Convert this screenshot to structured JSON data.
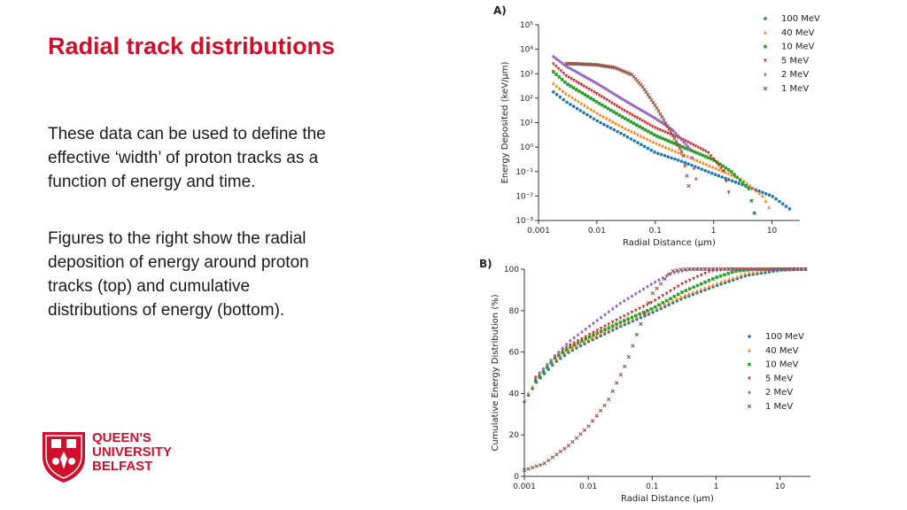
{
  "slide": {
    "title": "Radial track distributions",
    "paragraphs": [
      "These data can be used to define the effective ‘width’ of proton tracks as a function of energy and time.",
      "Figures to the right show the radial deposition of energy around proton tracks (top) and cumulative distributions of energy (bottom)."
    ]
  },
  "logo": {
    "lines": [
      "QUEEN'S",
      "UNIVERSITY",
      "BELFAST"
    ],
    "icon": "university-crest-icon",
    "color": "#d10e2c"
  },
  "chart_data": [
    {
      "panel": "A)",
      "type": "scatter",
      "xscale": "log",
      "yscale": "log",
      "xlabel": "Radial Distance (μm)",
      "ylabel": "Energy Deposited (keV/μm)",
      "xlim": [
        0.001,
        30
      ],
      "ylim": [
        0.001,
        100000
      ],
      "x_ticks": [
        "0.001",
        "0.01",
        "0.1",
        "1",
        "10"
      ],
      "y_ticks": [
        "10⁻³",
        "10⁻²",
        "10⁻¹",
        "10⁰",
        "10¹",
        "10²",
        "10³",
        "10⁴",
        "10⁵"
      ],
      "legend_position": "top-right",
      "series": [
        {
          "name": "100 MeV",
          "color": "#1f77b4",
          "marker": "dot",
          "points": [
            [
              0.0018,
              180
            ],
            [
              0.003,
              70
            ],
            [
              0.01,
              12
            ],
            [
              0.03,
              3
            ],
            [
              0.1,
              0.6
            ],
            [
              0.3,
              0.25
            ],
            [
              1,
              0.08
            ],
            [
              3,
              0.03
            ],
            [
              10,
              0.01
            ],
            [
              20,
              0.003
            ]
          ]
        },
        {
          "name": "40 MeV",
          "color": "#ff7f0e",
          "marker": "triangle",
          "points": [
            [
              0.0018,
              400
            ],
            [
              0.003,
              150
            ],
            [
              0.01,
              25
            ],
            [
              0.03,
              6
            ],
            [
              0.1,
              1.5
            ],
            [
              0.3,
              0.5
            ],
            [
              1,
              0.15
            ],
            [
              3,
              0.05
            ],
            [
              7,
              0.01
            ],
            [
              10,
              0.002
            ]
          ]
        },
        {
          "name": "10 MeV",
          "color": "#2ca02c",
          "marker": "square",
          "points": [
            [
              0.0018,
              1200
            ],
            [
              0.003,
              400
            ],
            [
              0.01,
              70
            ],
            [
              0.03,
              15
            ],
            [
              0.1,
              3
            ],
            [
              0.3,
              1
            ],
            [
              1,
              0.3
            ],
            [
              2,
              0.1
            ],
            [
              4,
              0.02
            ],
            [
              5,
              0.002
            ]
          ]
        },
        {
          "name": "5 MeV",
          "color": "#d62728",
          "marker": "triangle-down",
          "points": [
            [
              0.0018,
              2500
            ],
            [
              0.003,
              800
            ],
            [
              0.01,
              150
            ],
            [
              0.03,
              30
            ],
            [
              0.1,
              6
            ],
            [
              0.3,
              2
            ],
            [
              0.8,
              0.6
            ],
            [
              1.5,
              0.1
            ],
            [
              2,
              0.005
            ]
          ]
        },
        {
          "name": "2 MeV",
          "color": "#9467bd",
          "marker": "diamond",
          "points": [
            [
              0.0018,
              5000
            ],
            [
              0.003,
              2000
            ],
            [
              0.01,
              400
            ],
            [
              0.03,
              80
            ],
            [
              0.1,
              15
            ],
            [
              0.2,
              5
            ],
            [
              0.4,
              0.8
            ],
            [
              0.5,
              0.05
            ]
          ]
        },
        {
          "name": "1 MeV",
          "color": "#8c564b",
          "marker": "cross",
          "points": [
            [
              0.003,
              2600
            ],
            [
              0.005,
              2500
            ],
            [
              0.01,
              2300
            ],
            [
              0.02,
              1800
            ],
            [
              0.04,
              900
            ],
            [
              0.06,
              300
            ],
            [
              0.1,
              50
            ],
            [
              0.2,
              3
            ],
            [
              0.3,
              0.5
            ],
            [
              0.4,
              0.01
            ]
          ]
        }
      ]
    },
    {
      "panel": "B)",
      "type": "scatter",
      "xscale": "log",
      "yscale": "linear",
      "xlabel": "Radial Distance (μm)",
      "ylabel": "Cumulative Energy Distribution (%)",
      "xlim": [
        0.001,
        30
      ],
      "ylim": [
        0,
        100
      ],
      "x_ticks": [
        "0.001",
        "0.01",
        "0.1",
        "1",
        "10"
      ],
      "y_ticks": [
        "0",
        "20",
        "40",
        "60",
        "80",
        "100"
      ],
      "legend_position": "center-right",
      "series": [
        {
          "name": "100 MeV",
          "color": "#1f77b4",
          "marker": "dot",
          "points": [
            [
              0.001,
              36
            ],
            [
              0.0015,
              45
            ],
            [
              0.003,
              55
            ],
            [
              0.005,
              60
            ],
            [
              0.01,
              65
            ],
            [
              0.03,
              72
            ],
            [
              0.1,
              79
            ],
            [
              0.3,
              86
            ],
            [
              1,
              92
            ],
            [
              3,
              97
            ],
            [
              10,
              99.5
            ],
            [
              25,
              100
            ]
          ]
        },
        {
          "name": "40 MeV",
          "color": "#ff7f0e",
          "marker": "triangle",
          "points": [
            [
              0.001,
              37
            ],
            [
              0.0015,
              46
            ],
            [
              0.003,
              56
            ],
            [
              0.005,
              61
            ],
            [
              0.01,
              66
            ],
            [
              0.03,
              73
            ],
            [
              0.1,
              80
            ],
            [
              0.3,
              87
            ],
            [
              1,
              93
            ],
            [
              3,
              98
            ],
            [
              8,
              100
            ],
            [
              25,
              100
            ]
          ]
        },
        {
          "name": "10 MeV",
          "color": "#2ca02c",
          "marker": "square",
          "points": [
            [
              0.0015,
              46
            ],
            [
              0.003,
              57
            ],
            [
              0.005,
              62
            ],
            [
              0.01,
              67
            ],
            [
              0.03,
              74
            ],
            [
              0.1,
              81
            ],
            [
              0.3,
              89
            ],
            [
              1,
              96
            ],
            [
              2,
              99
            ],
            [
              4,
              100
            ],
            [
              25,
              100
            ]
          ]
        },
        {
          "name": "5 MeV",
          "color": "#d62728",
          "marker": "triangle-down",
          "points": [
            [
              0.0015,
              47
            ],
            [
              0.003,
              58
            ],
            [
              0.005,
              63
            ],
            [
              0.01,
              68
            ],
            [
              0.03,
              76
            ],
            [
              0.1,
              84
            ],
            [
              0.3,
              93
            ],
            [
              0.8,
              99
            ],
            [
              1.5,
              100
            ],
            [
              25,
              100
            ]
          ]
        },
        {
          "name": "2 MeV",
          "color": "#9467bd",
          "marker": "diamond",
          "points": [
            [
              0.0015,
              48
            ],
            [
              0.002,
              52
            ],
            [
              0.003,
              58
            ],
            [
              0.005,
              65
            ],
            [
              0.01,
              72
            ],
            [
              0.03,
              83
            ],
            [
              0.1,
              93
            ],
            [
              0.2,
              98
            ],
            [
              0.4,
              100
            ],
            [
              25,
              100
            ]
          ]
        },
        {
          "name": "1 MeV",
          "color": "#8c564b",
          "marker": "cross",
          "points": [
            [
              0.001,
              3
            ],
            [
              0.002,
              6
            ],
            [
              0.003,
              10
            ],
            [
              0.005,
              15
            ],
            [
              0.01,
              24
            ],
            [
              0.02,
              36
            ],
            [
              0.04,
              55
            ],
            [
              0.06,
              70
            ],
            [
              0.1,
              88
            ],
            [
              0.2,
              99
            ],
            [
              0.3,
              100
            ],
            [
              25,
              100
            ]
          ]
        }
      ]
    }
  ]
}
